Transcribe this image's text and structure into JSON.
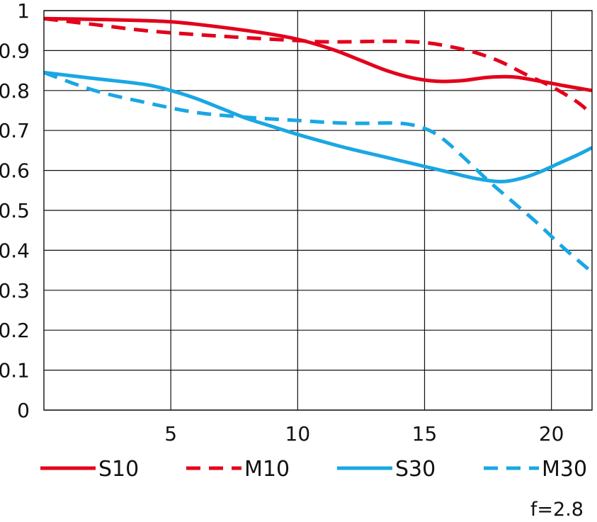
{
  "chart_data": {
    "type": "line",
    "title": "",
    "xlabel": "",
    "ylabel": "",
    "xlim": [
      0,
      21.6
    ],
    "ylim": [
      0,
      1
    ],
    "grid": true,
    "legend_position": "bottom",
    "x_ticks": [
      5,
      10,
      15,
      20
    ],
    "x_tick_labels": [
      "5",
      "10",
      "15",
      "20"
    ],
    "y_ticks": [
      0,
      0.1,
      0.2,
      0.3,
      0.4,
      0.5,
      0.6,
      0.7,
      0.8,
      0.9,
      1
    ],
    "y_tick_labels": [
      "0",
      "0.1",
      "0.2",
      "0.3",
      "0.4",
      "0.5",
      "0.6",
      "0.7",
      "0.8",
      "0.9",
      "1"
    ],
    "annotation": "f=2.8",
    "series": [
      {
        "name": "S10",
        "color": "#e3001b",
        "dash": "solid",
        "points": [
          [
            0,
            0.98
          ],
          [
            2,
            0.978
          ],
          [
            4,
            0.975
          ],
          [
            5,
            0.972
          ],
          [
            6,
            0.966
          ],
          [
            8,
            0.95
          ],
          [
            9.5,
            0.935
          ],
          [
            10.5,
            0.92
          ],
          [
            11.5,
            0.9
          ],
          [
            12.5,
            0.875
          ],
          [
            13.5,
            0.85
          ],
          [
            14.5,
            0.832
          ],
          [
            15.5,
            0.823
          ],
          [
            16.5,
            0.825
          ],
          [
            17.5,
            0.833
          ],
          [
            18.5,
            0.834
          ],
          [
            19.5,
            0.824
          ],
          [
            20.5,
            0.812
          ],
          [
            21.6,
            0.8
          ]
        ]
      },
      {
        "name": "M10",
        "color": "#e3001b",
        "dash": "dashed",
        "points": [
          [
            0,
            0.98
          ],
          [
            2,
            0.965
          ],
          [
            4,
            0.95
          ],
          [
            6,
            0.94
          ],
          [
            8,
            0.932
          ],
          [
            10,
            0.925
          ],
          [
            11,
            0.922
          ],
          [
            12,
            0.922
          ],
          [
            13,
            0.923
          ],
          [
            14,
            0.923
          ],
          [
            15,
            0.92
          ],
          [
            16,
            0.91
          ],
          [
            17,
            0.895
          ],
          [
            18,
            0.872
          ],
          [
            19,
            0.84
          ],
          [
            20,
            0.81
          ],
          [
            21,
            0.772
          ],
          [
            21.6,
            0.74
          ]
        ]
      },
      {
        "name": "S30",
        "color": "#1aa7e3",
        "dash": "solid",
        "points": [
          [
            0,
            0.845
          ],
          [
            2,
            0.83
          ],
          [
            4,
            0.815
          ],
          [
            5,
            0.8
          ],
          [
            6,
            0.78
          ],
          [
            7,
            0.755
          ],
          [
            8,
            0.73
          ],
          [
            9,
            0.71
          ],
          [
            10,
            0.69
          ],
          [
            11,
            0.672
          ],
          [
            12,
            0.655
          ],
          [
            13,
            0.64
          ],
          [
            14,
            0.625
          ],
          [
            15,
            0.61
          ],
          [
            16,
            0.595
          ],
          [
            17,
            0.58
          ],
          [
            18,
            0.572
          ],
          [
            18.8,
            0.58
          ],
          [
            19.5,
            0.595
          ],
          [
            20.2,
            0.615
          ],
          [
            21,
            0.638
          ],
          [
            21.6,
            0.657
          ]
        ]
      },
      {
        "name": "M30",
        "color": "#1aa7e3",
        "dash": "dashed",
        "points": [
          [
            0,
            0.845
          ],
          [
            2,
            0.8
          ],
          [
            4,
            0.77
          ],
          [
            6,
            0.745
          ],
          [
            8,
            0.733
          ],
          [
            10,
            0.725
          ],
          [
            12,
            0.718
          ],
          [
            14,
            0.718
          ],
          [
            15,
            0.705
          ],
          [
            15.7,
            0.68
          ],
          [
            16.5,
            0.635
          ],
          [
            17.5,
            0.575
          ],
          [
            18.5,
            0.52
          ],
          [
            19.5,
            0.465
          ],
          [
            20.5,
            0.405
          ],
          [
            21.6,
            0.345
          ]
        ]
      }
    ]
  }
}
